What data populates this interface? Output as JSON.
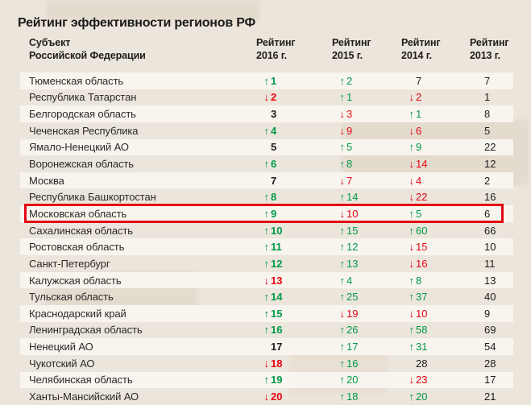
{
  "title": "Рейтинг эффективности регионов РФ",
  "colors": {
    "background": "#ece5db",
    "row_stripe": "#f8f4ee",
    "text": "#1d1d1b",
    "trend_up": "#009a49",
    "trend_down": "#e30613",
    "highlight_border": "#e30613"
  },
  "chart_data": {
    "type": "table",
    "title": "Рейтинг эффективности регионов РФ",
    "region_header_lines": [
      "Субъект",
      "Российской Федерации"
    ],
    "column_headers": [
      {
        "line1": "Рейтинг",
        "line2": "2016 г."
      },
      {
        "line1": "Рейтинг",
        "line2": "2015 г."
      },
      {
        "line1": "Рейтинг",
        "line2": "2014 г."
      },
      {
        "line1": "Рейтинг",
        "line2": "2013 г."
      }
    ],
    "highlighted_region": "Московская область",
    "rows": [
      {
        "region": "Тюменская область",
        "highlighted": false,
        "cells": [
          {
            "v": "1",
            "dir": "up"
          },
          {
            "v": "2",
            "dir": "up"
          },
          {
            "v": "7",
            "dir": "none"
          },
          {
            "v": "7",
            "dir": "none"
          }
        ]
      },
      {
        "region": "Республика Татарстан",
        "highlighted": false,
        "cells": [
          {
            "v": "2",
            "dir": "down"
          },
          {
            "v": "1",
            "dir": "up"
          },
          {
            "v": "2",
            "dir": "down"
          },
          {
            "v": "1",
            "dir": "none"
          }
        ]
      },
      {
        "region": "Белгородская область",
        "highlighted": false,
        "cells": [
          {
            "v": "3",
            "dir": "none"
          },
          {
            "v": "3",
            "dir": "down"
          },
          {
            "v": "1",
            "dir": "up"
          },
          {
            "v": "8",
            "dir": "none"
          }
        ]
      },
      {
        "region": "Чеченская Республика",
        "highlighted": false,
        "cells": [
          {
            "v": "4",
            "dir": "up"
          },
          {
            "v": "9",
            "dir": "down"
          },
          {
            "v": "6",
            "dir": "down"
          },
          {
            "v": "5",
            "dir": "none"
          }
        ]
      },
      {
        "region": "Ямало-Ненецкий АО",
        "highlighted": false,
        "cells": [
          {
            "v": "5",
            "dir": "none"
          },
          {
            "v": "5",
            "dir": "up"
          },
          {
            "v": "9",
            "dir": "up"
          },
          {
            "v": "22",
            "dir": "none"
          }
        ]
      },
      {
        "region": "Воронежская область",
        "highlighted": false,
        "cells": [
          {
            "v": "6",
            "dir": "up"
          },
          {
            "v": "8",
            "dir": "up"
          },
          {
            "v": "14",
            "dir": "down"
          },
          {
            "v": "12",
            "dir": "none"
          }
        ]
      },
      {
        "region": "Москва",
        "highlighted": false,
        "cells": [
          {
            "v": "7",
            "dir": "none"
          },
          {
            "v": "7",
            "dir": "down"
          },
          {
            "v": "4",
            "dir": "down"
          },
          {
            "v": "2",
            "dir": "none"
          }
        ]
      },
      {
        "region": "Республика Башкортостан",
        "highlighted": false,
        "cells": [
          {
            "v": "8",
            "dir": "up"
          },
          {
            "v": "14",
            "dir": "up"
          },
          {
            "v": "22",
            "dir": "down"
          },
          {
            "v": "16",
            "dir": "none"
          }
        ]
      },
      {
        "region": "Московская область",
        "highlighted": true,
        "cells": [
          {
            "v": "9",
            "dir": "up"
          },
          {
            "v": "10",
            "dir": "down"
          },
          {
            "v": "5",
            "dir": "up"
          },
          {
            "v": "6",
            "dir": "none"
          }
        ]
      },
      {
        "region": "Сахалинская область",
        "highlighted": false,
        "cells": [
          {
            "v": "10",
            "dir": "up"
          },
          {
            "v": "15",
            "dir": "up"
          },
          {
            "v": "60",
            "dir": "up"
          },
          {
            "v": "66",
            "dir": "none"
          }
        ]
      },
      {
        "region": "Ростовская область",
        "highlighted": false,
        "cells": [
          {
            "v": "11",
            "dir": "up"
          },
          {
            "v": "12",
            "dir": "up"
          },
          {
            "v": "15",
            "dir": "down"
          },
          {
            "v": "10",
            "dir": "none"
          }
        ]
      },
      {
        "region": "Санкт-Петербург",
        "highlighted": false,
        "cells": [
          {
            "v": "12",
            "dir": "up"
          },
          {
            "v": "13",
            "dir": "up"
          },
          {
            "v": "16",
            "dir": "down"
          },
          {
            "v": "11",
            "dir": "none"
          }
        ]
      },
      {
        "region": "Калужская область",
        "highlighted": false,
        "cells": [
          {
            "v": "13",
            "dir": "down"
          },
          {
            "v": "4",
            "dir": "up"
          },
          {
            "v": "8",
            "dir": "up"
          },
          {
            "v": "13",
            "dir": "none"
          }
        ]
      },
      {
        "region": "Тульская область",
        "highlighted": false,
        "cells": [
          {
            "v": "14",
            "dir": "up"
          },
          {
            "v": "25",
            "dir": "up"
          },
          {
            "v": "37",
            "dir": "up"
          },
          {
            "v": "40",
            "dir": "none"
          }
        ]
      },
      {
        "region": "Краснодарский край",
        "highlighted": false,
        "cells": [
          {
            "v": "15",
            "dir": "up"
          },
          {
            "v": "19",
            "dir": "down"
          },
          {
            "v": "10",
            "dir": "down"
          },
          {
            "v": "9",
            "dir": "none"
          }
        ]
      },
      {
        "region": "Ленинградская область",
        "highlighted": false,
        "cells": [
          {
            "v": "16",
            "dir": "up"
          },
          {
            "v": "26",
            "dir": "up"
          },
          {
            "v": "58",
            "dir": "up"
          },
          {
            "v": "69",
            "dir": "none"
          }
        ]
      },
      {
        "region": "Ненецкий АО",
        "highlighted": false,
        "cells": [
          {
            "v": "17",
            "dir": "none"
          },
          {
            "v": "17",
            "dir": "up"
          },
          {
            "v": "31",
            "dir": "up"
          },
          {
            "v": "54",
            "dir": "none"
          }
        ]
      },
      {
        "region": "Чукотский АО",
        "highlighted": false,
        "cells": [
          {
            "v": "18",
            "dir": "down"
          },
          {
            "v": "16",
            "dir": "up"
          },
          {
            "v": "28",
            "dir": "none"
          },
          {
            "v": "28",
            "dir": "none"
          }
        ]
      },
      {
        "region": "Челябинская область",
        "highlighted": false,
        "cells": [
          {
            "v": "19",
            "dir": "up"
          },
          {
            "v": "20",
            "dir": "up"
          },
          {
            "v": "23",
            "dir": "down"
          },
          {
            "v": "17",
            "dir": "none"
          }
        ]
      },
      {
        "region": "Ханты-Мансийский АО",
        "highlighted": false,
        "cells": [
          {
            "v": "20",
            "dir": "down"
          },
          {
            "v": "18",
            "dir": "up"
          },
          {
            "v": "20",
            "dir": "up"
          },
          {
            "v": "21",
            "dir": "none"
          }
        ]
      }
    ]
  }
}
